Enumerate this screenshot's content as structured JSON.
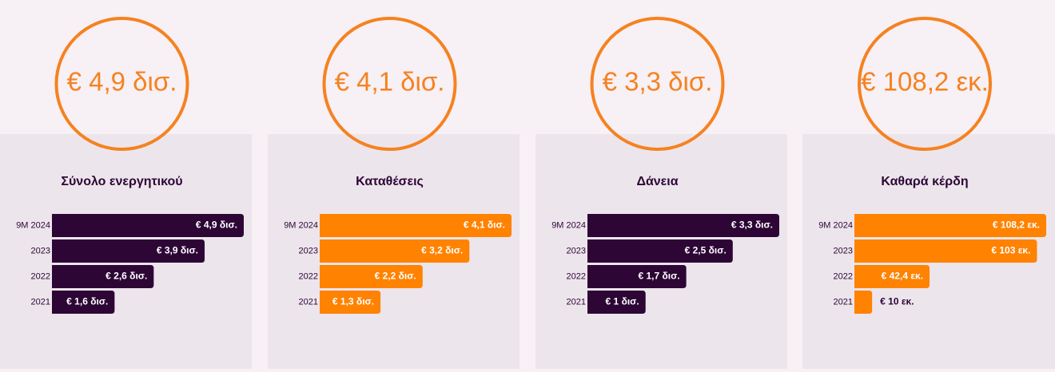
{
  "chart_data": [
    {
      "type": "bar",
      "headline": "€ 4,9 δισ.",
      "title": "Σύνολο ενεργητικού",
      "categories": [
        "9M 2024",
        "2023",
        "2022",
        "2021"
      ],
      "values": [
        4.9,
        3.9,
        2.6,
        1.6
      ],
      "value_labels": [
        "€ 4,9 δισ.",
        "€ 3,9 δισ.",
        "€ 2,6 δισ.",
        "€ 1,6 δισ."
      ],
      "color": "#2d0636"
    },
    {
      "type": "bar",
      "headline": "€ 4,1 δισ.",
      "title": "Καταθέσεις",
      "categories": [
        "9M 2024",
        "2023",
        "2022",
        "2021"
      ],
      "values": [
        4.1,
        3.2,
        2.2,
        1.3
      ],
      "value_labels": [
        "€ 4,1 δισ.",
        "€ 3,2 δισ.",
        "€ 2,2 δισ.",
        "€ 1,3 δισ."
      ],
      "color": "#ff8200"
    },
    {
      "type": "bar",
      "headline": "€ 3,3 δισ.",
      "title": "Δάνεια",
      "categories": [
        "9M 2024",
        "2023",
        "2022",
        "2021"
      ],
      "values": [
        3.3,
        2.5,
        1.7,
        1
      ],
      "value_labels": [
        "€ 3,3 δισ.",
        "€ 2,5 δισ.",
        "€ 1,7 δισ.",
        "€ 1 δισ."
      ],
      "color": "#2d0636"
    },
    {
      "type": "bar",
      "headline": "€ 108,2 εκ.",
      "title": "Καθαρά κέρδη",
      "categories": [
        "9M 2024",
        "2023",
        "2022",
        "2021"
      ],
      "values": [
        108.2,
        103,
        42.4,
        10
      ],
      "value_labels": [
        "€ 108,2 εκ.",
        "€ 103 εκ.",
        "€ 42,4 εκ.",
        "€ 10 εκ."
      ],
      "color": "#ff8200"
    }
  ]
}
